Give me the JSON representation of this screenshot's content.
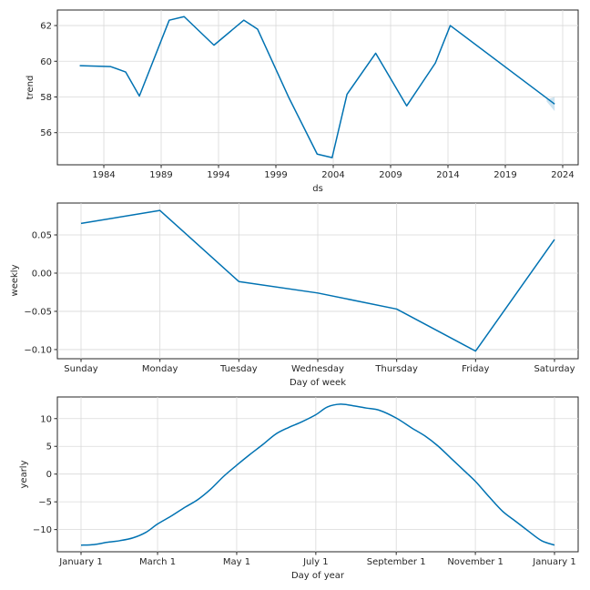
{
  "figure": {
    "colors": {
      "line": "#0072B2",
      "band": "#0072B2",
      "grid": "#d9d9d9",
      "frame": "#262626"
    }
  },
  "chart_data": [
    {
      "id": "trend",
      "type": "line",
      "title": "",
      "xlabel": "ds",
      "ylabel": "trend",
      "grid": true,
      "xlim": [
        1979.95,
        2025.35
      ],
      "ylim": [
        54.2,
        62.87
      ],
      "xticks": [
        1984,
        1989,
        1994,
        1999,
        2004,
        2009,
        2014,
        2019,
        2024
      ],
      "xtick_labels": [
        "1984",
        "1989",
        "1994",
        "1999",
        "2004",
        "2009",
        "2014",
        "2019",
        "2024"
      ],
      "yticks": [
        56,
        58,
        60,
        62
      ],
      "ytick_labels": [
        "56",
        "58",
        "60",
        "62"
      ],
      "series": [
        {
          "name": "trend",
          "x": [
            1981.9,
            1984.6,
            1985.9,
            1987.1,
            1989.7,
            1991.0,
            1993.6,
            1996.2,
            1997.4,
            2000.1,
            2002.6,
            2003.9,
            2005.2,
            2007.7,
            2010.4,
            2012.9,
            2014.2,
            2023.3
          ],
          "y": [
            59.75,
            59.7,
            59.4,
            58.05,
            62.3,
            62.5,
            60.9,
            62.3,
            61.8,
            58.0,
            54.8,
            54.6,
            58.15,
            60.45,
            57.5,
            59.9,
            62.0,
            57.6
          ]
        }
      ],
      "uncertainty_band": {
        "x": [
          2022.6,
          2023.3
        ],
        "lower": [
          57.75,
          57.2
        ],
        "upper": [
          57.85,
          58.0
        ]
      }
    },
    {
      "id": "weekly",
      "type": "line",
      "title": "",
      "xlabel": "Day of week",
      "ylabel": "weekly",
      "grid": true,
      "categories": [
        "Sunday",
        "Monday",
        "Tuesday",
        "Wednesday",
        "Thursday",
        "Friday",
        "Saturday"
      ],
      "ylim": [
        -0.112,
        0.0917
      ],
      "yticks": [
        -0.1,
        -0.05,
        0.0,
        0.05
      ],
      "ytick_labels": [
        "−0.10",
        "−0.05",
        "0.00",
        "0.05"
      ],
      "series": [
        {
          "name": "weekly",
          "values": [
            0.065,
            0.082,
            -0.011,
            -0.026,
            -0.047,
            -0.102,
            0.044
          ]
        }
      ]
    },
    {
      "id": "yearly",
      "type": "line",
      "title": "",
      "xlabel": "Day of year",
      "ylabel": "yearly",
      "grid": true,
      "xlim": [
        -6,
        377
      ],
      "ylim": [
        -14.0,
        13.9
      ],
      "xticks": [
        0,
        59,
        120,
        181,
        243,
        304,
        365
      ],
      "xtick_labels": [
        "January 1",
        "March 1",
        "May 1",
        "July 1",
        "September 1",
        "November 1",
        "January 1"
      ],
      "yticks": [
        -10,
        -5,
        0,
        5,
        10
      ],
      "ytick_labels": [
        "−10",
        "−5",
        "0",
        "5",
        "10"
      ],
      "series": [
        {
          "name": "yearly",
          "x": [
            0,
            10,
            20,
            30,
            40,
            50,
            59,
            70,
            80,
            90,
            100,
            110,
            120,
            130,
            140,
            150,
            160,
            170,
            181,
            190,
            200,
            210,
            220,
            230,
            243,
            255,
            265,
            275,
            285,
            295,
            304,
            315,
            325,
            335,
            345,
            355,
            365
          ],
          "y": [
            -12.8,
            -12.7,
            -12.3,
            -12.0,
            -11.5,
            -10.5,
            -9.0,
            -7.5,
            -6.0,
            -4.6,
            -2.7,
            -0.4,
            1.6,
            3.5,
            5.3,
            7.2,
            8.4,
            9.4,
            10.7,
            12.1,
            12.6,
            12.3,
            11.9,
            11.5,
            10.1,
            8.3,
            6.9,
            5.1,
            2.9,
            0.7,
            -1.3,
            -4.2,
            -6.7,
            -8.5,
            -10.3,
            -12.0,
            -12.8
          ]
        }
      ]
    }
  ]
}
